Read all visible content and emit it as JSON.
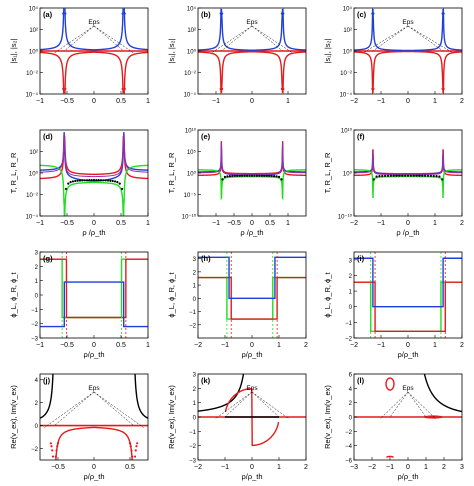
{
  "figure": {
    "colors": {
      "red": "#e41a1c",
      "blue": "#1f3fd8",
      "green": "#22dd22",
      "black": "#000000",
      "purple": "#9b2fae"
    },
    "annotation_label": "Eps"
  },
  "chart_data": [
    {
      "id": "a",
      "type": "line",
      "panel_label": "(a)",
      "ylabel": "|s₁|, |s₂|",
      "xlabel": "",
      "log_y": true,
      "xlim": [
        -1,
        1
      ],
      "ylim": [
        0.0001,
        10000
      ],
      "xticks": [
        -1,
        -0.5,
        0,
        0.5,
        1
      ],
      "xtick_labels": [
        "−1",
        "−0.5",
        "0",
        "0.5",
        "1"
      ],
      "yticks": [
        0.0001,
        0.01,
        1,
        100,
        10000
      ],
      "ytick_labels": [
        "10⁻⁴",
        "10⁻²",
        "10⁰",
        "10²",
        "10⁴"
      ],
      "eps_points": [
        -0.55,
        0.55
      ],
      "annotation": "Eps",
      "series": [
        {
          "color": "red",
          "values_fn": "bimodal_plus"
        },
        {
          "color": "blue",
          "values_fn": "bimodal_minus"
        }
      ]
    },
    {
      "id": "b",
      "type": "line",
      "panel_label": "(b)",
      "ylabel": "|s₁|, |s₂|",
      "xlabel": "",
      "log_y": true,
      "xlim": [
        -1.5,
        1.5
      ],
      "ylim": [
        0.0001,
        10000
      ],
      "xticks": [
        -1,
        0,
        1
      ],
      "xtick_labels": [
        "−1",
        "0",
        "1"
      ],
      "yticks": [
        0.0001,
        0.01,
        1,
        100,
        10000
      ],
      "ytick_labels": [
        "10⁻⁴",
        "10⁻²",
        "10⁰",
        "10²",
        "10⁴"
      ],
      "eps_points": [
        -0.85,
        0.85
      ],
      "annotation": "Eps"
    },
    {
      "id": "c",
      "type": "line",
      "panel_label": "(c)",
      "ylabel": "|s₁|, |s₂|",
      "xlabel": "",
      "log_y": true,
      "xlim": [
        -2,
        2
      ],
      "ylim": [
        0.0001,
        10000
      ],
      "xticks": [
        -2,
        -1,
        0,
        1,
        2
      ],
      "xtick_labels": [
        "−2",
        "−1",
        "0",
        "1",
        "2"
      ],
      "yticks": [
        0.0001,
        0.01,
        1,
        100,
        10000
      ],
      "ytick_labels": [
        "10⁻⁴",
        "10⁻²",
        "10⁰",
        "10²",
        "10⁴"
      ],
      "eps_points": [
        -1.3,
        1.3
      ],
      "annotation": "Eps"
    },
    {
      "id": "d",
      "type": "line",
      "panel_label": "(d)",
      "ylabel": "T, R_L, R_R",
      "xlabel": "ρ /ρ_th",
      "log_y": true,
      "xlim": [
        -1,
        1
      ],
      "ylim": [
        0.0001,
        10000
      ],
      "xticks": [
        -1,
        -0.5,
        0,
        0.5,
        1
      ],
      "xtick_labels": [
        "−1",
        "−0.5",
        "0",
        "0.5",
        "1"
      ],
      "yticks": [
        0.0001,
        0.01,
        1,
        100
      ],
      "ytick_labels": [
        "10⁻⁴",
        "10⁻²",
        "10⁰",
        "10²"
      ],
      "eps_points": [
        -0.55,
        0.55
      ]
    },
    {
      "id": "e",
      "type": "line",
      "panel_label": "(e)",
      "ylabel": "T, R_L, R_R",
      "xlabel": "ρ /ρ_th",
      "log_y": true,
      "xlim": [
        -1.5,
        1.5
      ],
      "ylim": [
        1e-10,
        10000000000.0
      ],
      "xticks": [
        -1,
        -0.5,
        0,
        0.5,
        1
      ],
      "xtick_labels": [
        "−1",
        "−0.5",
        "0",
        "0.5",
        "1"
      ],
      "yticks": [
        1e-10,
        1e-05,
        1,
        100000.0,
        10000000000.0
      ],
      "ytick_labels": [
        "10⁻¹⁰",
        "10⁻⁵",
        "10⁰",
        "10⁵",
        "10¹⁰"
      ],
      "eps_points": [
        -0.85,
        0.85
      ]
    },
    {
      "id": "f",
      "type": "line",
      "panel_label": "(f)",
      "ylabel": "T, R_L, R_R",
      "xlabel": "ρ /ρ_th",
      "log_y": true,
      "xlim": [
        -2,
        2
      ],
      "ylim": [
        1e-10,
        10000000000.0
      ],
      "xticks": [
        -2,
        -1,
        0,
        1,
        2
      ],
      "xtick_labels": [
        "−2",
        "−1",
        "0",
        "1",
        "2"
      ],
      "yticks": [
        1e-10,
        1,
        10000000000.0
      ],
      "ytick_labels": [
        "10⁻¹⁰",
        "10⁰",
        "10¹⁰"
      ],
      "eps_points": [
        -1.3,
        1.3
      ]
    },
    {
      "id": "g",
      "type": "line",
      "panel_label": "(g)",
      "ylabel": "ϕ_L, ϕ_R, ϕ_t",
      "xlabel": "ρ/ρ_th",
      "log_y": false,
      "xlim": [
        -1,
        1
      ],
      "ylim": [
        -3,
        3
      ],
      "xticks": [
        -1,
        -0.5,
        0,
        0.5,
        1
      ],
      "xtick_labels": [
        "−1",
        "−0.5",
        "0",
        "0.5",
        "1"
      ],
      "yticks": [
        -3,
        -2,
        -1,
        0,
        1,
        2,
        3
      ],
      "ytick_labels": [
        "−3",
        "−2",
        "−1",
        "0",
        "1",
        "2",
        "3"
      ],
      "eps_points": [
        -0.55,
        0.55
      ],
      "levels": {
        "red_outer": 2.5,
        "red_inner": -1.57,
        "green_outer": 2.5,
        "green_inner": -1.57,
        "blue_outer": -2.2,
        "blue_inner": 0.9
      }
    },
    {
      "id": "h",
      "type": "line",
      "panel_label": "(h)",
      "ylabel": "ϕ_L, ϕ_R, ϕ_t",
      "xlabel": "ρ/ρ_th",
      "log_y": false,
      "xlim": [
        -2,
        2
      ],
      "ylim": [
        -3,
        3.5
      ],
      "xticks": [
        -2,
        -1,
        0,
        1,
        2
      ],
      "xtick_labels": [
        "−2",
        "−1",
        "0",
        "1",
        "2"
      ],
      "yticks": [
        -2,
        -1,
        0,
        1,
        2,
        3
      ],
      "ytick_labels": [
        "−2",
        "−1",
        "0",
        "1",
        "2",
        "3"
      ],
      "eps_points": [
        -0.85,
        0.85
      ],
      "levels": {
        "red_outer": 1.57,
        "red_inner": -1.57,
        "green_outer": 1.57,
        "green_inner": -1.57,
        "blue_outer": 3.1,
        "blue_inner": 0
      }
    },
    {
      "id": "i",
      "type": "line",
      "panel_label": "(i)",
      "ylabel": "ϕ_L, ϕ_R, ϕ_t",
      "xlabel": "ρ/ρ_th",
      "log_y": false,
      "xlim": [
        -2,
        2
      ],
      "ylim": [
        -2,
        3.5
      ],
      "xticks": [
        -2,
        -1,
        0,
        1,
        2
      ],
      "xtick_labels": [
        "−2",
        "−1",
        "0",
        "1",
        "2"
      ],
      "yticks": [
        -2,
        -1,
        0,
        1,
        2,
        3
      ],
      "ytick_labels": [
        "−2",
        "−1",
        "0",
        "1",
        "2",
        "3"
      ],
      "eps_points": [
        -1.3,
        1.3
      ],
      "levels": {
        "red_outer": 1.57,
        "red_inner": -1.57,
        "green_outer": 1.57,
        "green_inner": -1.57,
        "blue_outer": 3.1,
        "blue_inner": 0
      }
    },
    {
      "id": "j",
      "type": "line",
      "panel_label": "(j)",
      "ylabel": "Re(v_ex), Im(v_ex)",
      "xlabel": "ρ/ρ_th",
      "log_y": false,
      "xlim": [
        -0.75,
        0.75
      ],
      "ylim": [
        -3,
        4.5
      ],
      "xticks": [
        -0.5,
        0,
        0.5
      ],
      "xtick_labels": [
        "−0.5",
        "0",
        "0.5"
      ],
      "yticks": [
        -2,
        0,
        2,
        4
      ],
      "ytick_labels": [
        "−2",
        "0",
        "2",
        "4"
      ],
      "eps_points": [
        -0.55,
        0.55
      ],
      "annotation": "Eps"
    },
    {
      "id": "k",
      "type": "line",
      "panel_label": "(k)",
      "ylabel": "Re(v_ex), Im(v_ex)",
      "xlabel": "ρ/ρ_th",
      "log_y": false,
      "xlim": [
        -2,
        2
      ],
      "ylim": [
        -3,
        3
      ],
      "xticks": [
        -2,
        -1,
        0,
        1,
        2
      ],
      "xtick_labels": [
        "−2",
        "−1",
        "0",
        "1",
        "2"
      ],
      "yticks": [
        -3,
        -2,
        -1,
        0,
        1,
        2,
        3
      ],
      "ytick_labels": [
        "−3",
        "−2",
        "−1",
        "0",
        "1",
        "2",
        "3"
      ],
      "eps_points": [
        -1,
        1
      ],
      "annotation": "Eps"
    },
    {
      "id": "l",
      "type": "line",
      "panel_label": "(l)",
      "ylabel": "Re(v_ex), Im(v_ex)",
      "xlabel": "ρ/ρ_th",
      "log_y": false,
      "xlim": [
        -3,
        3
      ],
      "ylim": [
        -6,
        6
      ],
      "xticks": [
        -3,
        -2,
        -1,
        0,
        1,
        2,
        3
      ],
      "xtick_labels": [
        "−3",
        "−2",
        "−1",
        "0",
        "1",
        "2",
        "3"
      ],
      "yticks": [
        -6,
        -4,
        -2,
        0,
        2,
        4,
        6
      ],
      "ytick_labels": [
        "−6",
        "−4",
        "−2",
        "0",
        "2",
        "4",
        "6"
      ],
      "eps_points": [
        -1,
        1
      ],
      "annotation": "Eps"
    }
  ]
}
